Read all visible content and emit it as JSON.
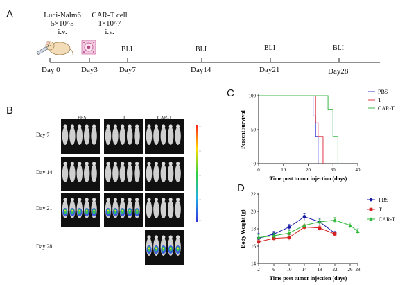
{
  "panelA": {
    "letter": "A",
    "injections": [
      {
        "name": "Luci-Nalm6",
        "dose": "5×10^5",
        "route": "i.v."
      },
      {
        "name": "CAR-T cell",
        "dose": "1×10^7",
        "route": "i.v."
      }
    ],
    "bli_label": "BLI",
    "days": [
      "Day 0",
      "Day3",
      "Day7",
      "Day14",
      "Day21",
      "Day28"
    ]
  },
  "panelB": {
    "letter": "B",
    "columns": [
      "PBS",
      "T",
      "CAR-T"
    ],
    "rows": [
      "Day 7",
      "Day 14",
      "Day 21",
      "Day 28"
    ]
  },
  "panelC": {
    "letter": "C",
    "chart_data": {
      "type": "line",
      "subtype": "kaplan-meier",
      "xlabel": "Time post tumor injection (days)",
      "ylabel": "Percent survival",
      "xlim": [
        0,
        40
      ],
      "ylim": [
        0,
        100
      ],
      "xticks": [
        0,
        10,
        20,
        30,
        40
      ],
      "yticks": [
        0,
        50,
        100
      ],
      "legend_position": "right",
      "series": [
        {
          "name": "PBS",
          "color": "#3b3bd6",
          "x": [
            0,
            22,
            22,
            23,
            23,
            24,
            24
          ],
          "y": [
            100,
            100,
            70,
            70,
            40,
            40,
            0
          ]
        },
        {
          "name": "T",
          "color": "#e03a4a",
          "x": [
            0,
            23,
            23,
            24,
            24,
            26,
            26
          ],
          "y": [
            100,
            100,
            60,
            60,
            40,
            40,
            0
          ]
        },
        {
          "name": "CAR-T",
          "color": "#3cb84a",
          "x": [
            0,
            28,
            28,
            30,
            30,
            32,
            32
          ],
          "y": [
            100,
            100,
            80,
            80,
            40,
            40,
            0
          ]
        }
      ]
    }
  },
  "panelD": {
    "letter": "D",
    "chart_data": {
      "type": "line",
      "xlabel": "Time post tumor injection (days)",
      "ylabel": "Body Weight (g)",
      "xlim": [
        2,
        28
      ],
      "ylim": [
        14,
        22
      ],
      "xticks": [
        2,
        6,
        10,
        14,
        18,
        22,
        26,
        28
      ],
      "yticks": [
        14,
        16,
        18,
        20,
        22
      ],
      "legend_position": "right",
      "series": [
        {
          "name": "PBS",
          "color": "#1a1aa8",
          "marker": "circle",
          "x": [
            2,
            6,
            10,
            14,
            18,
            22
          ],
          "y": [
            16.9,
            17.4,
            18.2,
            19.4,
            18.8,
            17.5
          ],
          "err": [
            0.6,
            0.3,
            0.3,
            0.4,
            0.4,
            0.2
          ]
        },
        {
          "name": "T",
          "color": "#d42020",
          "marker": "square",
          "x": [
            2,
            6,
            10,
            14,
            18,
            22
          ],
          "y": [
            16.5,
            16.9,
            17.0,
            18.2,
            18.1,
            17.4
          ],
          "err": [
            0.3,
            0.3,
            0.3,
            0.3,
            0.3,
            0.2
          ]
        },
        {
          "name": "CAR-T",
          "color": "#2fb83a",
          "marker": "triangle",
          "x": [
            2,
            6,
            10,
            14,
            18,
            22,
            26,
            28
          ],
          "y": [
            17.0,
            17.2,
            17.5,
            18.4,
            18.8,
            19.0,
            18.4,
            17.7
          ],
          "err": [
            0.3,
            0.3,
            0.3,
            0.3,
            0.3,
            0.3,
            0.3,
            0.3
          ]
        }
      ]
    }
  }
}
